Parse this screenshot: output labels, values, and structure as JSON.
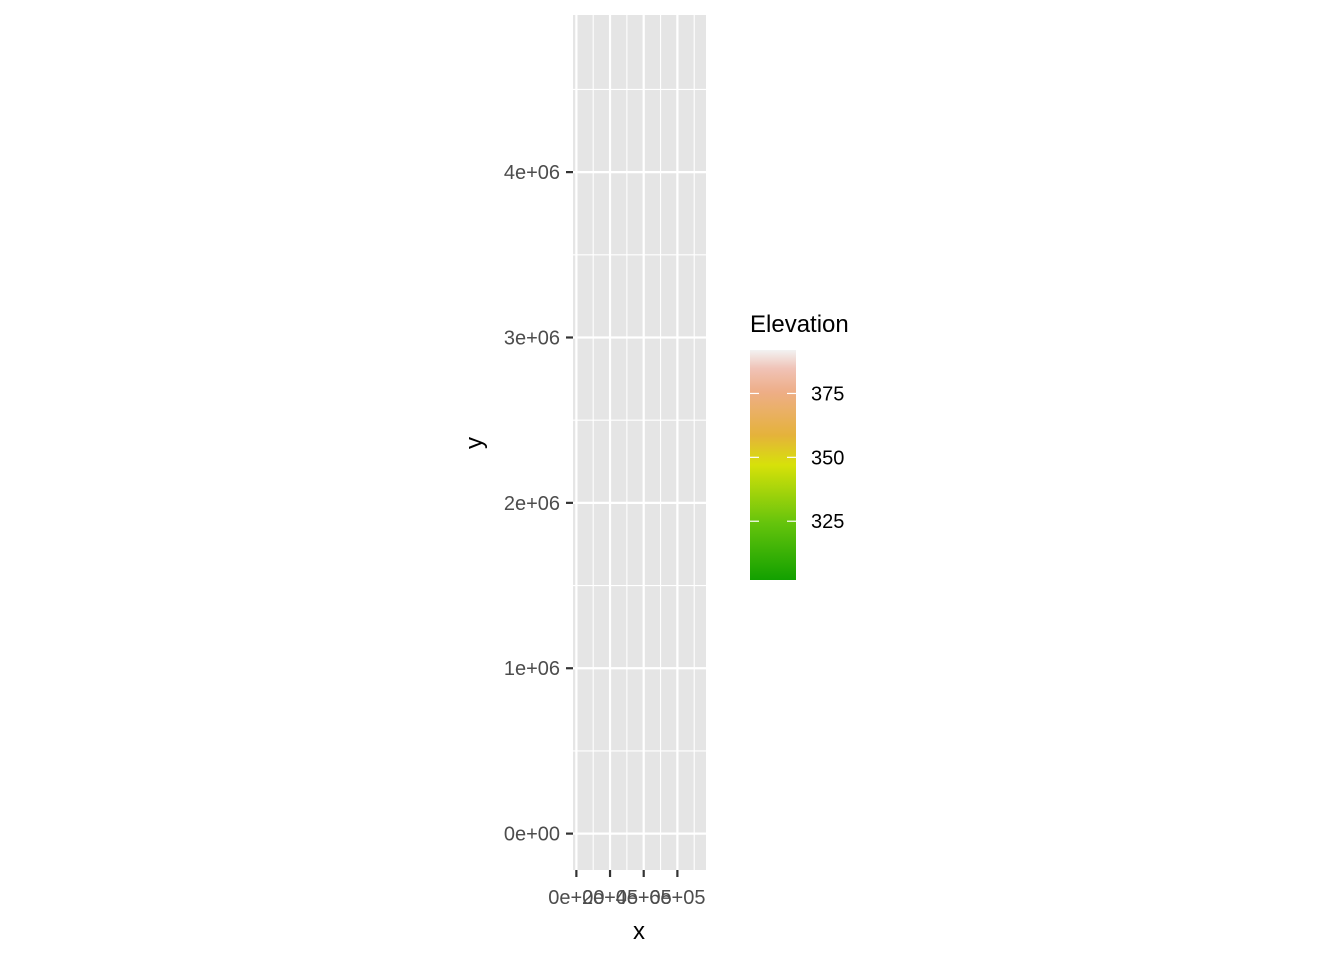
{
  "chart_data": {
    "type": "heatmap",
    "title": "",
    "xlabel": "x",
    "ylabel": "y",
    "x_ticks": [
      {
        "value": 0,
        "label": "0e+00"
      },
      {
        "value": 200000,
        "label": "2e+05"
      },
      {
        "value": 400000,
        "label": "4e+05"
      },
      {
        "value": 600000,
        "label": "6e+05"
      }
    ],
    "y_ticks": [
      {
        "value": 0,
        "label": "0e+00"
      },
      {
        "value": 1000000,
        "label": "1e+06"
      },
      {
        "value": 2000000,
        "label": "2e+06"
      },
      {
        "value": 3000000,
        "label": "3e+06"
      },
      {
        "value": 4000000,
        "label": "4e+06"
      }
    ],
    "xlim": [
      -20000,
      770000
    ],
    "ylim": [
      -220000,
      4950000
    ],
    "grid": true,
    "panel_background": "#e5e5e5",
    "grid_color": "#ffffff",
    "legend": {
      "title": "Elevation",
      "placement": "right",
      "range": [
        302,
        392
      ],
      "breaks": [
        325,
        350,
        375
      ],
      "colors": [
        {
          "at": 0.0,
          "color": "#12a000"
        },
        {
          "at": 0.25,
          "color": "#66c40c"
        },
        {
          "at": 0.5,
          "color": "#d7e10a"
        },
        {
          "at": 0.63,
          "color": "#e5b23b"
        },
        {
          "at": 0.82,
          "color": "#eeae88"
        },
        {
          "at": 0.92,
          "color": "#f0c3b7"
        },
        {
          "at": 1.0,
          "color": "#f2f2f2"
        }
      ]
    }
  }
}
